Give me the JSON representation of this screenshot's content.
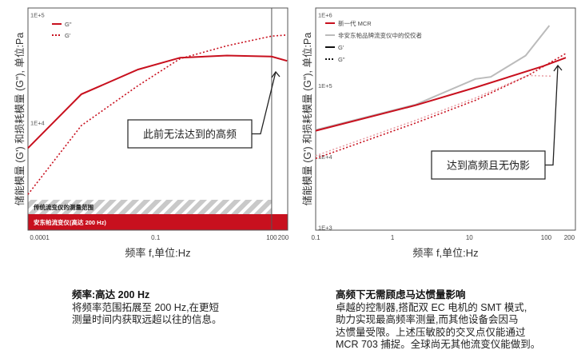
{
  "chart_data": [
    {
      "type": "line",
      "xlabel": "频率 f,单位:Hz",
      "ylabel": "储能模量 (G') 和损耗模量 (G\"), 单位:Pa",
      "xscale": "log",
      "yscale": "log",
      "xlim": [
        5e-05,
        260
      ],
      "ylim": [
        950,
        110000
      ],
      "xticks": [
        {
          "v": 0.0001,
          "label": "0.0001"
        },
        {
          "v": 0.1,
          "label": "0.1"
        },
        {
          "v": 100,
          "label": "100"
        },
        {
          "v": 200,
          "label": "200"
        }
      ],
      "yticks": [
        {
          "v": 100000,
          "label": "1E+5"
        },
        {
          "v": 10000,
          "label": "1E+4"
        }
      ],
      "legend": [
        "G\"",
        "G'"
      ],
      "series": [
        {
          "name": "G\"",
          "style": "solid",
          "color": "#c8101e",
          "x": [
            5e-05,
            0.0012,
            0.035,
            0.43,
            7,
            100,
            250
          ],
          "y": [
            5500,
            17400,
            29500,
            38000,
            39800,
            38900,
            35500
          ]
        },
        {
          "name": "G'",
          "style": "dotted",
          "color": "#c8101e",
          "x": [
            5e-05,
            0.0012,
            0.035,
            0.43,
            7,
            100,
            250
          ],
          "y": [
            2040,
            8900,
            20900,
            37200,
            49000,
            60300,
            61700
          ]
        }
      ],
      "bands": {
        "traditional": "传统流变仪的测量范围",
        "anton_paar": "安东帕流变仪(高达 200 Hz)"
      },
      "annotation": "此前无法达到的高频"
    },
    {
      "type": "line",
      "xlabel": "频率 f,单位:Hz",
      "ylabel": "储能模量 (G') 和损耗模量 (G\"), 单位:Pa",
      "xscale": "log",
      "yscale": "log",
      "xlim": [
        0.1,
        240
      ],
      "ylim": [
        850,
        1150000
      ],
      "xticks": [
        {
          "v": 0.1,
          "label": "0.1"
        },
        {
          "v": 1,
          "label": "1"
        },
        {
          "v": 10,
          "label": "10"
        },
        {
          "v": 100,
          "label": "100"
        },
        {
          "v": 200,
          "label": "200"
        }
      ],
      "yticks": [
        {
          "v": 1000000,
          "label": "1E+6"
        },
        {
          "v": 100000,
          "label": "1E+5"
        },
        {
          "v": 10000,
          "label": "1E+4"
        },
        {
          "v": 1000,
          "label": "1E+3"
        }
      ],
      "legend": [
        "新一代 MCR",
        "非安东帕品牌流变仪中的佼佼者",
        "G'",
        "G\""
      ],
      "series": [
        {
          "name": "competitor G'",
          "style": "solid",
          "color": "#bbbbbb",
          "x": [
            0.1,
            2,
            12,
            19,
            54,
            110
          ],
          "y": [
            22000,
            50000,
            115000,
            123000,
            245000,
            650000
          ]
        },
        {
          "name": "competitor G\"",
          "style": "dotted",
          "color": "#e8a0a6",
          "x": [
            0.1,
            2,
            12,
            58,
            115
          ],
          "y": [
            9500,
            30000,
            62000,
            129000,
            126000
          ]
        },
        {
          "name": "MCR G'",
          "style": "solid",
          "color": "#c8101e",
          "x": [
            0.1,
            2,
            12,
            91,
            180
          ],
          "y": [
            21400,
            49000,
            87000,
            174000,
            229000
          ]
        },
        {
          "name": "MCR G\"",
          "style": "dotted",
          "color": "#c8101e",
          "x": [
            0.1,
            2,
            12,
            58,
            180
          ],
          "y": [
            8700,
            27500,
            57500,
            129000,
            263000
          ]
        }
      ],
      "annotation": "达到高频且无伪影"
    }
  ],
  "captions": [
    {
      "title": "频率:高达 200 Hz",
      "lines": [
        "将频率范围拓展至 200 Hz,在更短",
        "测量时间内获取远超以往的信息。"
      ]
    },
    {
      "title": "高频下无需顾虑马达惯量影响",
      "lines": [
        "卓越的控制器,搭配双 EC 电机的 SMT 模式,",
        "助力实现最高频率测量,而其他设备会因马",
        "达惯量受限。上述压敏胶的交叉点仅能通过",
        "MCR 703 捕捉。全球尚无其他流变仪能做到。"
      ]
    }
  ]
}
